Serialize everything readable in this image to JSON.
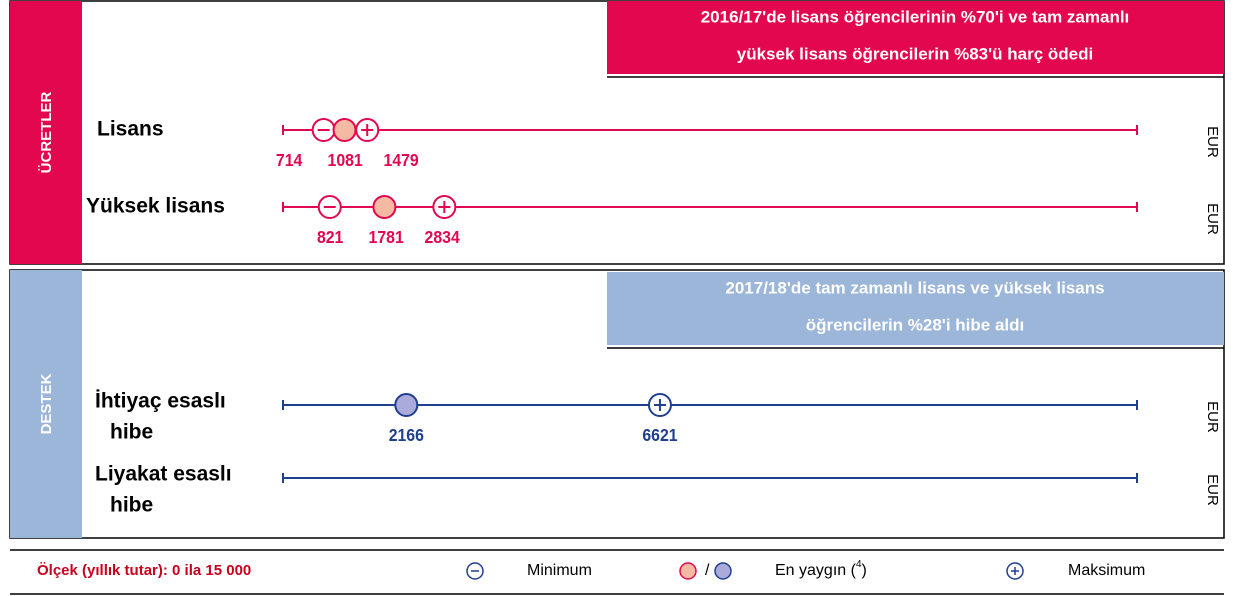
{
  "chart_data": {
    "type": "range",
    "xlim": [
      0,
      15000
    ],
    "unit": "EUR",
    "panels": [
      {
        "name": "ÜCRETLER",
        "color": "#e3074f",
        "marker_fill": "#f4b9a2",
        "note": [
          "2016/17'de lisans öğrencilerinin %70'i ve tam zamanlı",
          "yüksek lisans öğrencilerin %83'ü harç ödedi"
        ],
        "rows": [
          {
            "label": [
              "Lisans"
            ],
            "min": 714,
            "common": 1081,
            "max": 1479
          },
          {
            "label": [
              "Yüksek lisans"
            ],
            "min": 821,
            "common": 1781,
            "max": 2834
          }
        ]
      },
      {
        "name": "DESTEK",
        "color": "#9bb6d9",
        "line_color": "#1f3f8f",
        "marker_fill": "#aaaadb",
        "note": [
          "2017/18'de tam zamanlı lisans ve yüksek lisans",
          "öğrencilerin %28'i hibe aldı"
        ],
        "rows": [
          {
            "label": [
              "İhtiyaç esaslı",
              "hibe"
            ],
            "min": null,
            "common": 2166,
            "max": 6621
          },
          {
            "label": [
              "Liyakat esaslı",
              "hibe"
            ],
            "min": null,
            "common": null,
            "max": null
          }
        ]
      }
    ],
    "legend": {
      "scale": "Ölçek (yıllık tutar): 0 ila 15 000",
      "minimum": "Minimum",
      "separator": "/",
      "common": [
        "En yaygın (",
        "4",
        ")"
      ],
      "maximum": "Maksimum"
    }
  }
}
